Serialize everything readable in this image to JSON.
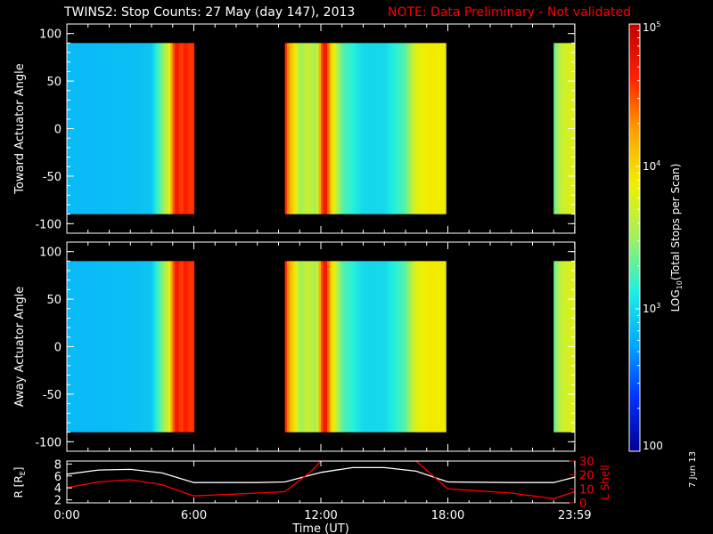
{
  "title": "TWINS2: Stop Counts: 27 May (day 147), 2013",
  "note": "NOTE: Data Preliminary - Not validated",
  "note_color": "#ff0000",
  "date_stamp": "7 Jun 13",
  "chart_data": [
    {
      "type": "heatmap",
      "ylabel": "Toward Actuator Angle",
      "ylim": [
        -110,
        110
      ],
      "y_ticks": [
        "100",
        "50",
        "0",
        "-50",
        "-100"
      ],
      "x_ticks": [
        "0:00",
        "6:00",
        "12:00",
        "18:00",
        "23:59"
      ],
      "angle_range": [
        -90,
        90
      ],
      "segments": [
        {
          "start_ut": 0.0,
          "end_ut": 6.0
        },
        {
          "start_ut": 10.3,
          "end_ut": 17.9
        },
        {
          "start_ut": 23.0,
          "end_ut": 23.99
        }
      ],
      "data_gaps": [
        [
          6.0,
          10.3
        ],
        [
          17.9,
          23.0
        ]
      ],
      "time_profile_log10": [
        [
          0.0,
          2.85
        ],
        [
          1.0,
          2.85
        ],
        [
          2.0,
          2.86
        ],
        [
          3.0,
          2.87
        ],
        [
          4.0,
          2.9
        ],
        [
          4.8,
          3.7
        ],
        [
          5.0,
          4.4
        ],
        [
          5.2,
          4.75
        ],
        [
          5.4,
          4.5
        ],
        [
          5.6,
          4.7
        ],
        [
          5.8,
          4.55
        ],
        [
          6.0,
          4.6
        ],
        [
          10.3,
          4.7
        ],
        [
          10.5,
          4.2
        ],
        [
          10.8,
          3.9
        ],
        [
          11.0,
          3.5
        ],
        [
          11.4,
          3.7
        ],
        [
          11.8,
          3.5
        ],
        [
          12.0,
          4.4
        ],
        [
          12.2,
          4.8
        ],
        [
          12.5,
          4.0
        ],
        [
          13.0,
          3.3
        ],
        [
          14.0,
          3.0
        ],
        [
          15.0,
          3.0
        ],
        [
          16.0,
          3.3
        ],
        [
          16.5,
          3.8
        ],
        [
          17.0,
          3.9
        ],
        [
          17.9,
          3.9
        ],
        [
          23.0,
          3.3
        ],
        [
          23.4,
          3.7
        ],
        [
          23.99,
          3.8
        ]
      ]
    },
    {
      "type": "heatmap",
      "ylabel": "Away Actuator Angle",
      "ylim": [
        -110,
        110
      ],
      "y_ticks": [
        "100",
        "50",
        "0",
        "-50",
        "-100"
      ],
      "x_ticks": [
        "0:00",
        "6:00",
        "12:00",
        "18:00",
        "23:59"
      ],
      "angle_range": [
        -90,
        90
      ],
      "segments": [
        {
          "start_ut": 0.0,
          "end_ut": 6.0
        },
        {
          "start_ut": 10.3,
          "end_ut": 17.9
        },
        {
          "start_ut": 23.0,
          "end_ut": 23.99
        }
      ],
      "data_gaps": [
        [
          6.0,
          10.3
        ],
        [
          17.9,
          23.0
        ]
      ],
      "time_profile_log10": [
        [
          0.0,
          2.85
        ],
        [
          1.0,
          2.85
        ],
        [
          2.0,
          2.86
        ],
        [
          3.0,
          2.87
        ],
        [
          4.0,
          2.9
        ],
        [
          4.8,
          3.7
        ],
        [
          5.0,
          4.4
        ],
        [
          5.2,
          4.75
        ],
        [
          5.4,
          4.5
        ],
        [
          5.6,
          4.7
        ],
        [
          5.8,
          4.55
        ],
        [
          6.0,
          4.6
        ],
        [
          10.3,
          4.7
        ],
        [
          10.5,
          4.2
        ],
        [
          10.8,
          3.9
        ],
        [
          11.0,
          3.5
        ],
        [
          11.4,
          3.7
        ],
        [
          11.8,
          3.5
        ],
        [
          12.0,
          4.4
        ],
        [
          12.2,
          4.8
        ],
        [
          12.5,
          4.0
        ],
        [
          13.0,
          3.3
        ],
        [
          14.0,
          3.0
        ],
        [
          15.0,
          3.0
        ],
        [
          16.0,
          3.3
        ],
        [
          16.5,
          3.8
        ],
        [
          17.0,
          3.9
        ],
        [
          17.9,
          3.9
        ],
        [
          23.0,
          3.3
        ],
        [
          23.4,
          3.7
        ],
        [
          23.99,
          3.8
        ]
      ]
    },
    {
      "type": "line",
      "x_ticks": [
        "0:00",
        "6:00",
        "12:00",
        "18:00",
        "23:59"
      ],
      "xlabel": "Time (UT)",
      "ylabel_left": "R [R",
      "ylabel_left_sub": "E",
      "ylabel_left_close": "]",
      "ylabel_right": "L Shell",
      "left_ticks": [
        "8",
        "6",
        "4",
        "2"
      ],
      "right_ticks": [
        "30",
        "20",
        "10",
        "0"
      ],
      "ylim_left": [
        1.5,
        8.5
      ],
      "ylim_right": [
        0,
        30
      ],
      "series": [
        {
          "color": "#ffffff",
          "axis": "left",
          "points": [
            [
              0,
              6.3
            ],
            [
              1.5,
              7.0
            ],
            [
              3,
              7.1
            ],
            [
              4.5,
              6.5
            ],
            [
              6,
              4.9
            ],
            [
              9,
              4.9
            ],
            [
              10.3,
              5.0
            ],
            [
              12,
              6.6
            ],
            [
              13.5,
              7.4
            ],
            [
              15,
              7.4
            ],
            [
              16.5,
              6.8
            ],
            [
              18,
              5.0
            ],
            [
              21,
              4.9
            ],
            [
              23,
              4.9
            ],
            [
              23.99,
              5.8
            ]
          ]
        },
        {
          "color": "#ff0000",
          "axis": "right",
          "points": [
            [
              0,
              11
            ],
            [
              1.5,
              15
            ],
            [
              3,
              16.5
            ],
            [
              4.5,
              13
            ],
            [
              6,
              5
            ],
            [
              9,
              7
            ],
            [
              10.3,
              8
            ],
            [
              11.5,
              22
            ],
            [
              12,
              30
            ],
            [
              16.5,
              30
            ],
            [
              18,
              10
            ],
            [
              21,
              7
            ],
            [
              23,
              3
            ],
            [
              23.99,
              8
            ]
          ]
        }
      ]
    },
    {
      "type": "heatmap",
      "role": "colorbar",
      "ylabel": "LOG",
      "ylabel_sub": "10",
      "ylabel_rest": "(Total Stops per Scan)",
      "tick_values_log10": [
        2,
        3,
        4,
        5
      ],
      "tick_labels": [
        {
          "base": "100",
          "exp": ""
        },
        {
          "base": "10",
          "exp": "3"
        },
        {
          "base": "10",
          "exp": "4"
        },
        {
          "base": "10",
          "exp": "5"
        }
      ],
      "range_log10": [
        2,
        5
      ],
      "colormap": [
        "#000090",
        "#0030ff",
        "#00a8ff",
        "#20f0e0",
        "#a0f060",
        "#f0f000",
        "#ffa000",
        "#ff2000",
        "#c00000"
      ]
    }
  ]
}
